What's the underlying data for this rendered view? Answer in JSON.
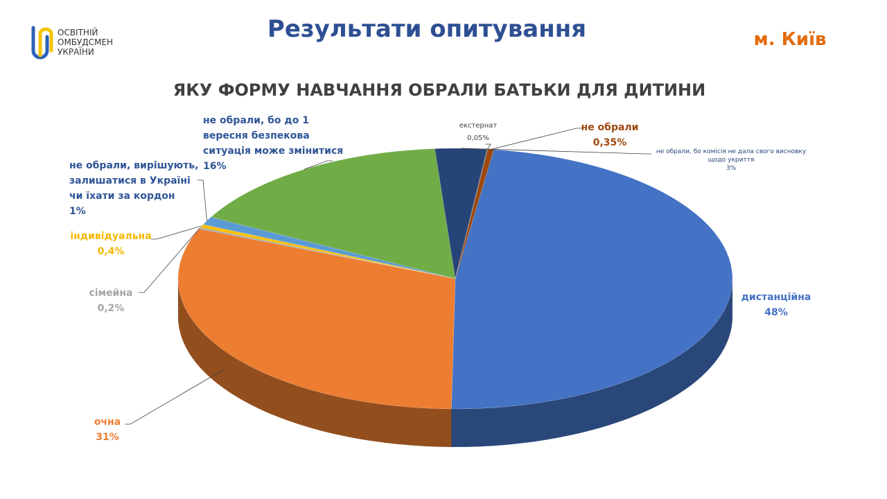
{
  "header": {
    "logo": "ОСВІТНІЙ ОМБУДСМЕН УКРАЇНИ",
    "title": "Результати опитування",
    "city": "м. Київ"
  },
  "chart_data": {
    "type": "pie",
    "title": "ЯКУ ФОРМУ НАВЧАННЯ ОБРАЛИ БАТЬКИ ДЛЯ ДИТИНИ",
    "categories": [
      "дистанційна",
      "очна",
      "сімейна",
      "індивідуальна",
      "не обрали, вирішують, залишатися в Україні чи їхати за кордон",
      "не обрали, бо до 1 вересня безпекова ситуація може змінитися",
      "не обрали, бо комісія не дала свого висновку щодо укриття",
      "екстернат",
      "не обрали"
    ],
    "values": [
      48,
      31,
      0.2,
      0.4,
      1,
      16,
      3,
      0.05,
      0.35
    ],
    "value_labels": [
      "48%",
      "31%",
      "0,2%",
      "0,4%",
      "1%",
      "16%",
      "3%",
      "0,05%",
      "0,35%"
    ],
    "colors": [
      "#4472c4",
      "#ed7d31",
      "#a5a5a5",
      "#ffc000",
      "#5b9bd5",
      "#70ad47",
      "#264478",
      "#636363",
      "#9e480e"
    ]
  }
}
